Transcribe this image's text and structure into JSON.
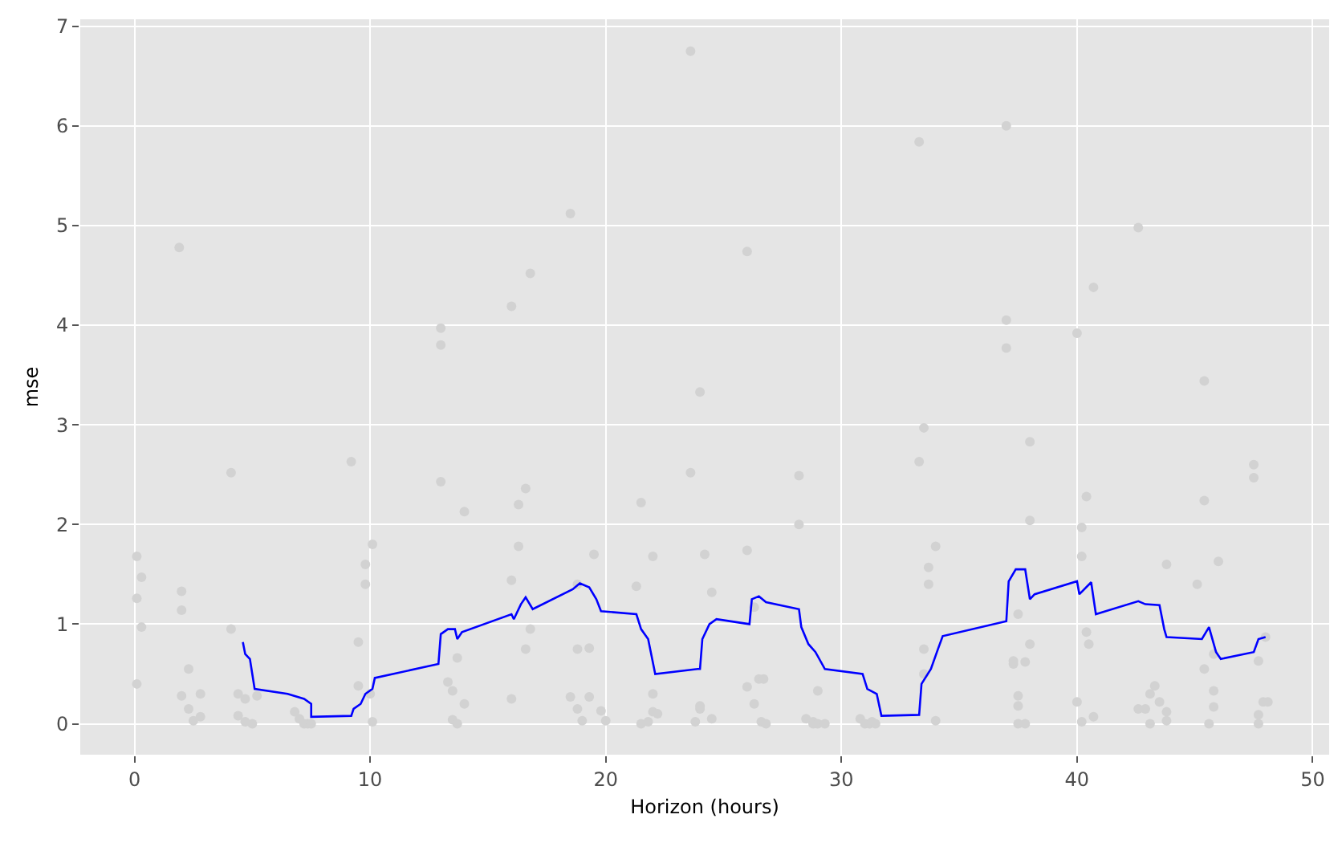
{
  "chart_data": {
    "type": "scatter",
    "xlabel": "Horizon (hours)",
    "ylabel": "mse",
    "xlim": [
      -2.3,
      50.7
    ],
    "ylim": [
      -0.31,
      7.07
    ],
    "xticks": [
      0,
      10,
      20,
      30,
      40,
      50
    ],
    "yticks": [
      0,
      1,
      2,
      3,
      4,
      5,
      6,
      7
    ],
    "grid": true,
    "series": [
      {
        "marker": "circle",
        "color": "#d2d2d2",
        "x": [
          0.1,
          0.1,
          0.1,
          0.3,
          0.3,
          1.9,
          2.0,
          2.0,
          2.0,
          2.3,
          2.3,
          2.5,
          2.8,
          2.8,
          4.1,
          4.1,
          4.4,
          4.4,
          4.7,
          4.7,
          5.0,
          5.2,
          6.8,
          7.0,
          7.2,
          7.35,
          7.5,
          9.2,
          9.5,
          9.5,
          9.8,
          9.8,
          10.1,
          10.1,
          10.0,
          13.0,
          13.0,
          13.0,
          13.3,
          13.5,
          13.5,
          13.7,
          13.7,
          14.0,
          14.0,
          16.0,
          16.0,
          16.0,
          16.3,
          16.3,
          16.6,
          16.6,
          16.8,
          16.8,
          18.5,
          18.5,
          18.8,
          18.8,
          18.8,
          19.0,
          19.3,
          19.3,
          19.5,
          19.8,
          20.0,
          21.3,
          21.5,
          21.5,
          21.8,
          22.0,
          22.0,
          22.0,
          22.2,
          23.6,
          23.6,
          23.8,
          24.0,
          24.0,
          24.0,
          24.2,
          24.5,
          24.5,
          26.0,
          26.0,
          26.0,
          26.3,
          26.3,
          26.5,
          26.7,
          26.6,
          26.8,
          28.2,
          28.2,
          28.5,
          28.8,
          28.8,
          29.0,
          29.0,
          29.3,
          30.8,
          31.0,
          31.2,
          31.3,
          31.45,
          33.3,
          33.3,
          33.5,
          33.5,
          33.5,
          33.7,
          33.7,
          34.0,
          34.0,
          37.0,
          37.0,
          37.0,
          37.3,
          37.3,
          37.5,
          37.5,
          37.5,
          37.5,
          37.8,
          37.8,
          38.0,
          38.0,
          38.0,
          40.0,
          40.0,
          40.2,
          40.2,
          40.2,
          40.4,
          40.4,
          40.7,
          40.7,
          40.5,
          42.6,
          42.6,
          42.9,
          43.1,
          43.1,
          43.3,
          43.5,
          43.8,
          43.8,
          43.8,
          45.1,
          45.4,
          45.4,
          45.4,
          45.6,
          45.8,
          45.8,
          45.8,
          46.0,
          47.5,
          47.5,
          47.7,
          47.7,
          47.7,
          47.9,
          48.1,
          48.0
        ],
        "values": [
          1.68,
          1.26,
          0.4,
          1.47,
          0.97,
          4.78,
          1.14,
          1.33,
          0.28,
          0.15,
          0.55,
          0.03,
          0.3,
          0.07,
          2.52,
          0.95,
          0.3,
          0.08,
          0.02,
          0.25,
          0.0,
          0.28,
          0.12,
          0.05,
          0.0,
          0.0,
          0.0,
          2.63,
          0.38,
          0.82,
          1.6,
          1.4,
          1.8,
          0.02,
          0.3,
          3.97,
          3.8,
          2.43,
          0.42,
          0.33,
          0.04,
          0.66,
          0.0,
          2.13,
          0.2,
          4.19,
          1.44,
          0.25,
          1.78,
          2.2,
          2.36,
          0.75,
          4.52,
          0.95,
          5.12,
          0.27,
          1.4,
          0.75,
          0.15,
          0.03,
          0.76,
          0.27,
          1.7,
          0.13,
          0.03,
          1.38,
          2.22,
          0.0,
          0.02,
          0.12,
          1.68,
          0.3,
          0.1,
          6.75,
          2.52,
          0.02,
          3.33,
          0.15,
          0.18,
          1.7,
          1.32,
          0.05,
          4.74,
          1.74,
          0.37,
          1.17,
          0.2,
          0.45,
          0.45,
          0.02,
          0.0,
          2.49,
          2.0,
          0.05,
          0.02,
          0.0,
          0.33,
          0.0,
          0.0,
          0.05,
          0.0,
          0.0,
          0.02,
          0.0,
          5.84,
          2.63,
          2.97,
          0.75,
          0.5,
          1.57,
          1.4,
          0.03,
          1.78,
          6.0,
          4.05,
          3.77,
          0.6,
          0.63,
          1.1,
          0.28,
          0.18,
          0.0,
          0.62,
          0.0,
          2.83,
          2.04,
          0.8,
          3.92,
          0.22,
          1.68,
          1.97,
          0.02,
          2.28,
          0.92,
          4.38,
          0.07,
          0.8,
          4.98,
          0.15,
          0.15,
          0.0,
          0.3,
          0.38,
          0.22,
          1.6,
          0.12,
          0.03,
          1.4,
          2.24,
          3.44,
          0.55,
          0.0,
          0.33,
          0.17,
          0.7,
          1.63,
          2.6,
          2.47,
          0.0,
          0.09,
          0.63,
          0.22,
          0.22,
          0.87
        ]
      },
      {
        "type": "line",
        "marker": "none",
        "line_style": "solid",
        "color": "#0000ff",
        "x": [
          4.6,
          4.7,
          4.9,
          5.0,
          5.1,
          6.5,
          7.2,
          7.5,
          7.5,
          9.2,
          9.3,
          9.6,
          9.8,
          10.1,
          10.2,
          12.9,
          13.0,
          13.3,
          13.6,
          13.7,
          13.9,
          16.0,
          16.1,
          16.4,
          16.6,
          16.9,
          18.6,
          18.9,
          19.3,
          19.6,
          19.8,
          21.3,
          21.5,
          21.8,
          22.1,
          23.9,
          24.0,
          24.1,
          24.4,
          24.7,
          26.1,
          26.2,
          26.5,
          26.8,
          28.2,
          28.3,
          28.6,
          28.9,
          29.3,
          30.9,
          31.1,
          31.5,
          31.7,
          33.3,
          33.4,
          33.8,
          34.1,
          34.3,
          37.0,
          37.1,
          37.4,
          37.8,
          38.0,
          38.2,
          40.0,
          40.1,
          40.6,
          40.8,
          42.6,
          42.9,
          43.5,
          43.7,
          43.8,
          45.3,
          45.6,
          45.9,
          46.1,
          47.5,
          47.7,
          48.0
        ],
        "values": [
          0.82,
          0.7,
          0.65,
          0.5,
          0.35,
          0.3,
          0.25,
          0.2,
          0.07,
          0.08,
          0.15,
          0.2,
          0.3,
          0.35,
          0.46,
          0.6,
          0.9,
          0.95,
          0.95,
          0.85,
          0.92,
          1.1,
          1.05,
          1.2,
          1.27,
          1.15,
          1.35,
          1.41,
          1.37,
          1.25,
          1.13,
          1.1,
          0.95,
          0.85,
          0.5,
          0.55,
          0.55,
          0.85,
          1.0,
          1.05,
          1.0,
          1.25,
          1.28,
          1.22,
          1.15,
          0.97,
          0.8,
          0.72,
          0.55,
          0.5,
          0.35,
          0.3,
          0.08,
          0.09,
          0.4,
          0.55,
          0.75,
          0.88,
          1.03,
          1.43,
          1.55,
          1.55,
          1.25,
          1.3,
          1.43,
          1.3,
          1.42,
          1.1,
          1.23,
          1.2,
          1.19,
          0.95,
          0.87,
          0.85,
          0.97,
          0.72,
          0.65,
          0.72,
          0.85,
          0.87
        ]
      }
    ]
  }
}
